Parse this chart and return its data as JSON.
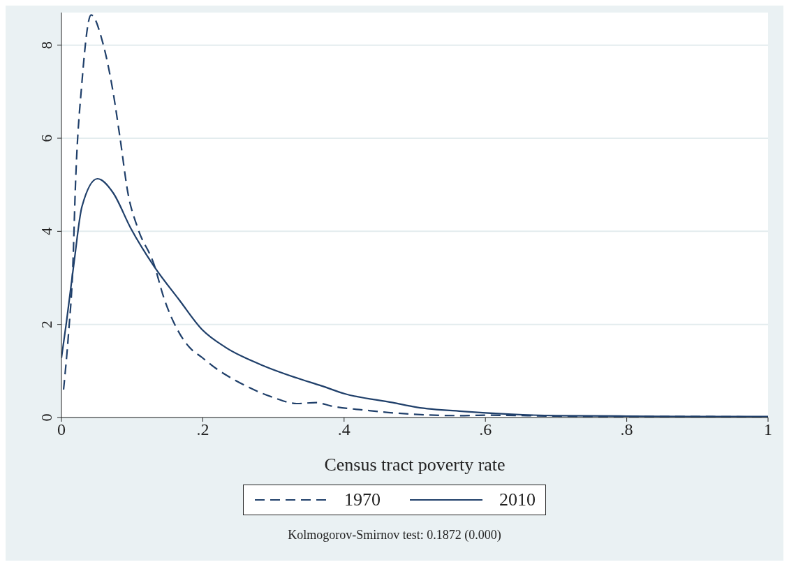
{
  "chart_data": {
    "type": "line",
    "xlabel": "Census tract poverty rate",
    "xlim": [
      0,
      1
    ],
    "xticks": [
      {
        "value": 0,
        "label": "0"
      },
      {
        "value": 0.2,
        "label": ".2"
      },
      {
        "value": 0.4,
        "label": ".4"
      },
      {
        "value": 0.6,
        "label": ".6"
      },
      {
        "value": 0.8,
        "label": ".8"
      },
      {
        "value": 1,
        "label": "1"
      }
    ],
    "ylim": [
      0,
      8.7
    ],
    "yticks": [
      0,
      2,
      4,
      6,
      8
    ],
    "grid": "y",
    "legend": "bottom",
    "marker": "none",
    "series": [
      {
        "name": "1970",
        "color": "#1f3f6a",
        "line_style": "dashed",
        "x": [
          0.003,
          0.01,
          0.016,
          0.02,
          0.029,
          0.042,
          0.058,
          0.073,
          0.083,
          0.094,
          0.108,
          0.131,
          0.145,
          0.167,
          0.181,
          0.199,
          0.221,
          0.246,
          0.3,
          0.333,
          0.361,
          0.381,
          0.435,
          0.469,
          0.57,
          0.6,
          0.7,
          0.8,
          0.9,
          1.0
        ],
        "values": [
          0.6,
          1.8,
          3.2,
          5.06,
          7.2,
          8.65,
          8.08,
          7.0,
          6.0,
          4.83,
          4.07,
          3.29,
          2.57,
          1.81,
          1.51,
          1.29,
          1.03,
          0.8,
          0.43,
          0.3,
          0.32,
          0.25,
          0.15,
          0.1,
          0.04,
          0.05,
          0.03,
          0.02,
          0.02,
          0.01
        ]
      },
      {
        "name": "2010",
        "color": "#1f3f6a",
        "line_style": "solid",
        "x": [
          0,
          0.007,
          0.018,
          0.029,
          0.051,
          0.073,
          0.098,
          0.131,
          0.167,
          0.199,
          0.232,
          0.283,
          0.333,
          0.368,
          0.401,
          0.469,
          0.503,
          0.57,
          0.637,
          0.7,
          0.8,
          0.9,
          1.0
        ],
        "values": [
          1.28,
          2.04,
          3.35,
          4.53,
          5.13,
          4.83,
          4.07,
          3.25,
          2.52,
          1.89,
          1.51,
          1.13,
          0.85,
          0.68,
          0.51,
          0.32,
          0.22,
          0.13,
          0.07,
          0.04,
          0.03,
          0.02,
          0.02
        ]
      }
    ],
    "annotations": [
      "Kolmogorov-Smirnov test: 0.1872 (0.000)"
    ]
  }
}
